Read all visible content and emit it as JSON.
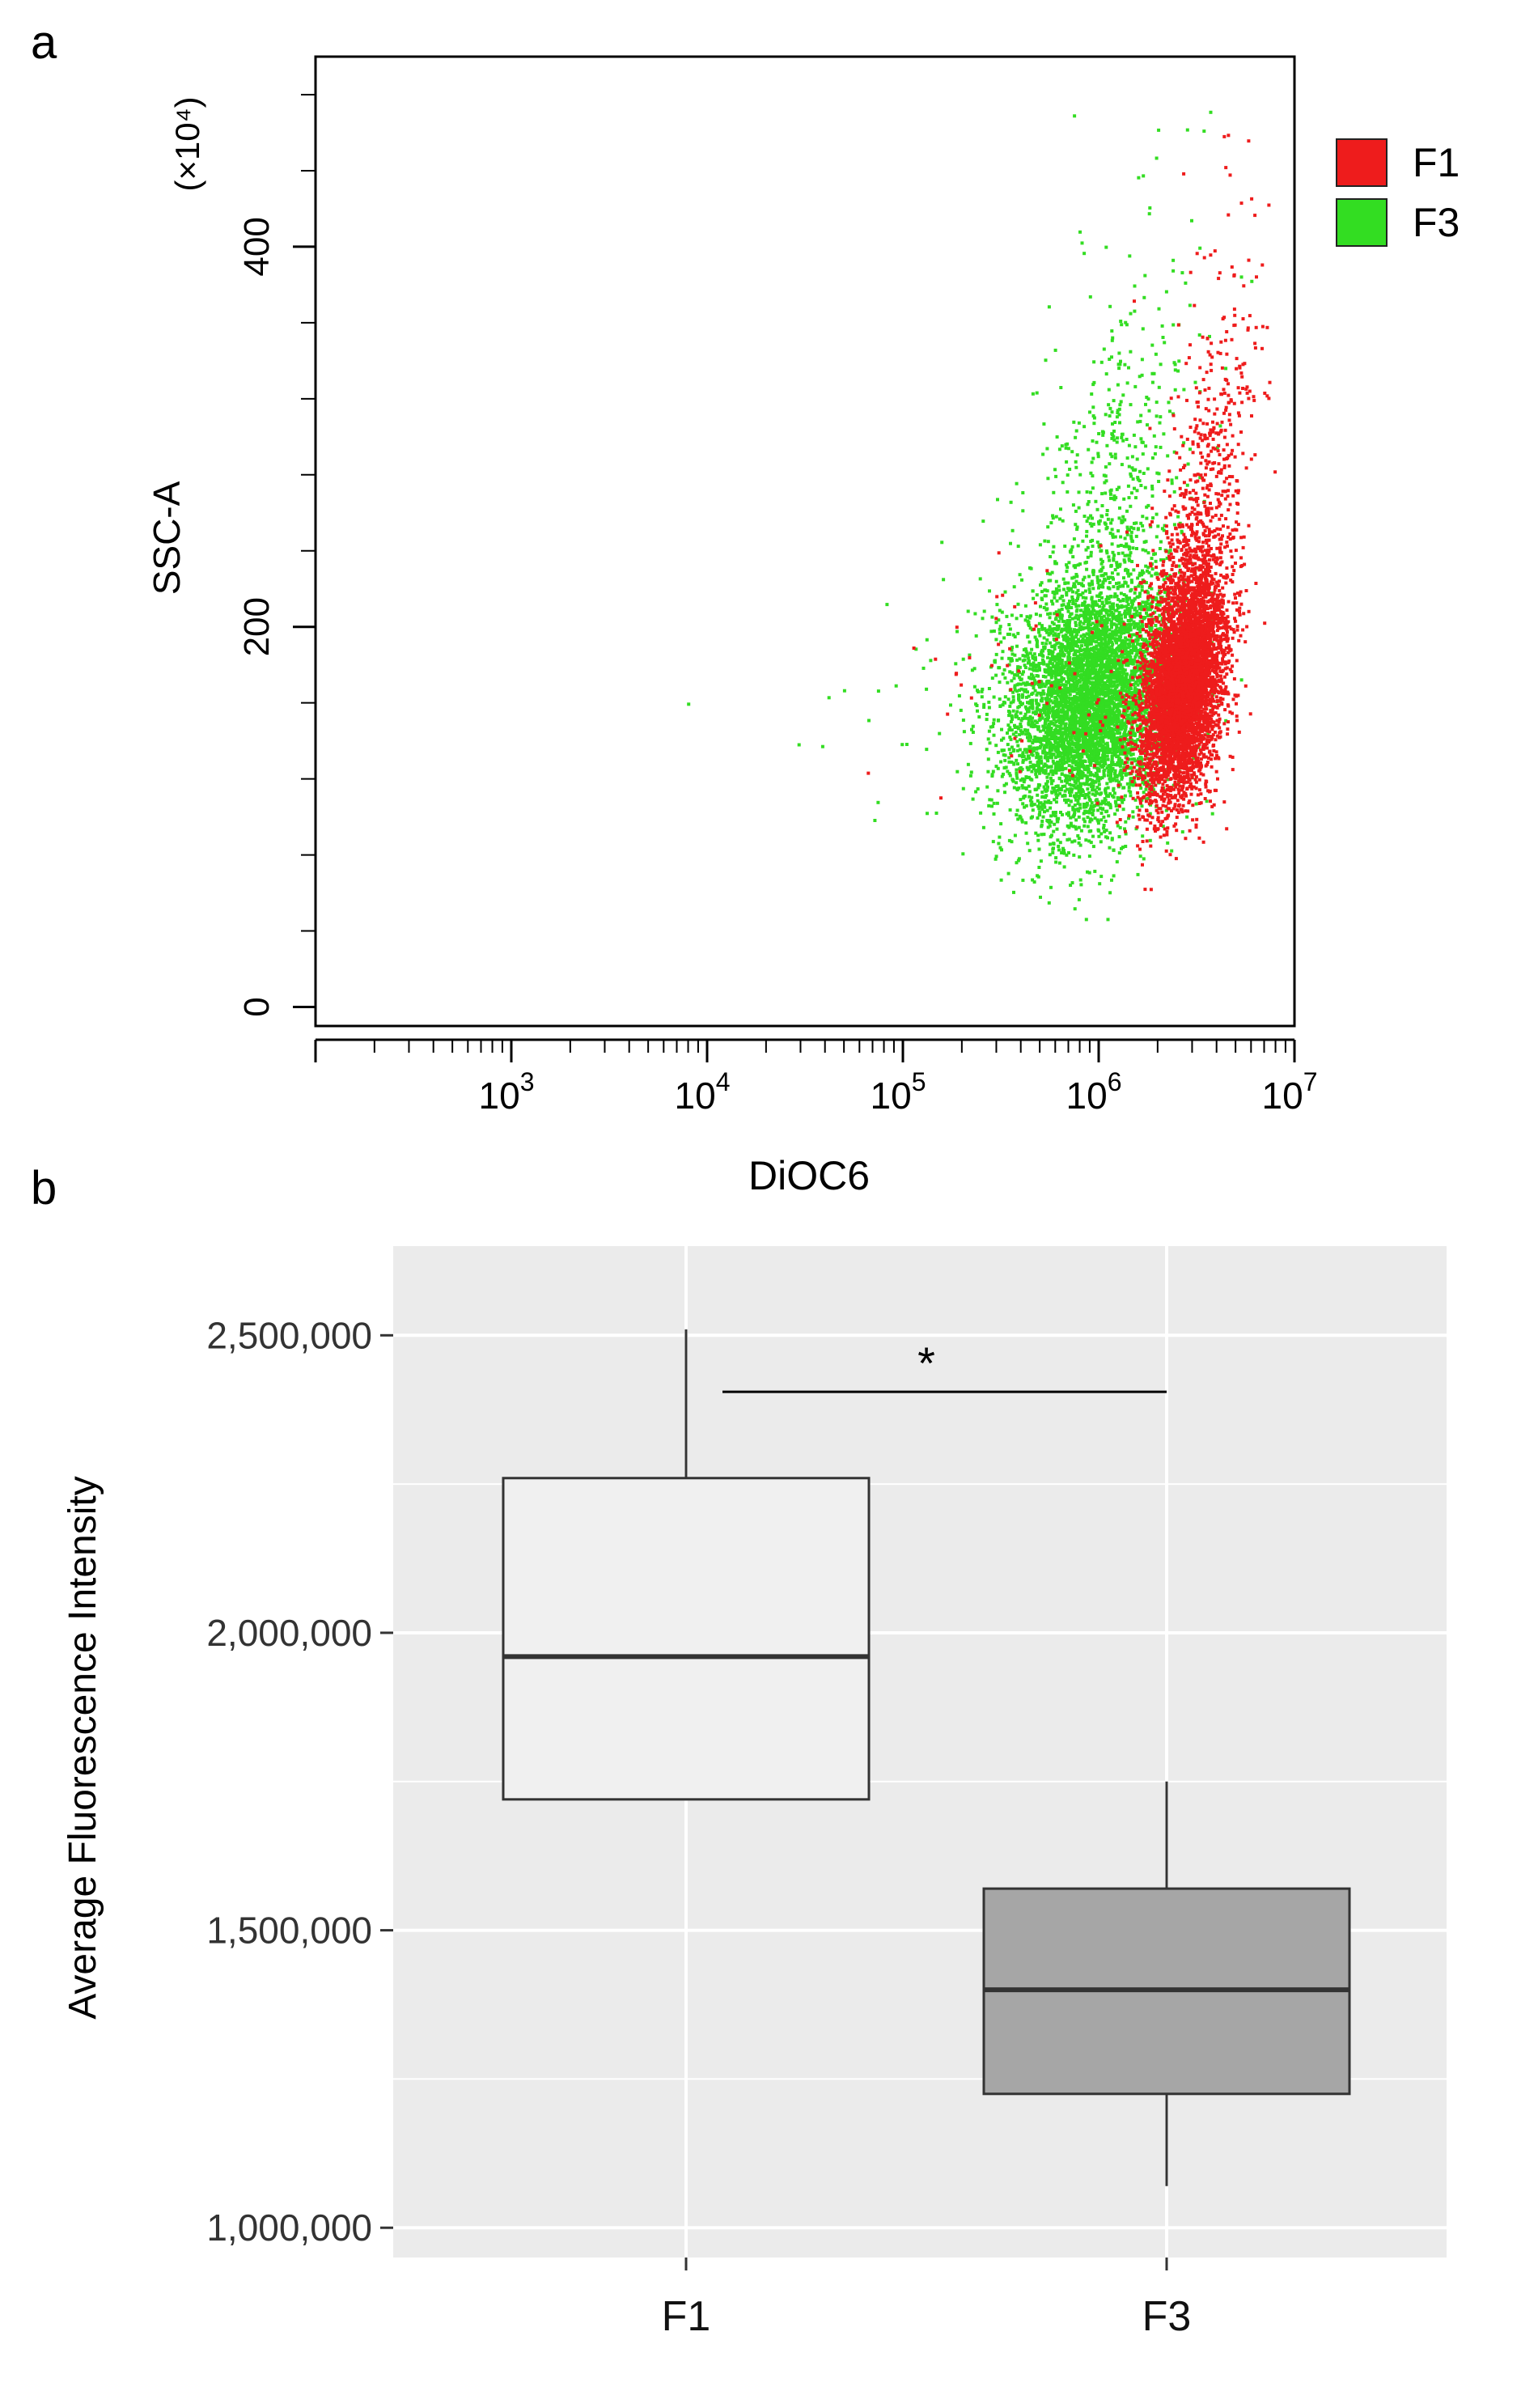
{
  "chart_data": [
    {
      "panel_label": "a",
      "type": "scatter",
      "title": "",
      "xlabel": "DiOC6",
      "ylabel": "SSC-A",
      "y_multiplier_label": "(×10⁴)",
      "x_scale": "log",
      "xlim": [
        100,
        10000000
      ],
      "ylim": [
        -10,
        500
      ],
      "x_tick_labels": [
        {
          "base": "10",
          "exp": "3",
          "value": 1000
        },
        {
          "base": "10",
          "exp": "4",
          "value": 10000
        },
        {
          "base": "10",
          "exp": "5",
          "value": 100000
        },
        {
          "base": "10",
          "exp": "6",
          "value": 1000000
        },
        {
          "base": "10",
          "exp": "7",
          "value": 10000000
        }
      ],
      "y_tick_labels": [
        {
          "label": "0",
          "value": 0
        },
        {
          "label": "200",
          "value": 200
        },
        {
          "label": "400",
          "value": 400
        }
      ],
      "legend": {
        "placement": "top-right",
        "entries": [
          {
            "name": "F1",
            "color": "#ee1c1c"
          },
          {
            "name": "F3",
            "color": "#33dd22"
          }
        ]
      },
      "series": [
        {
          "name": "F1",
          "color": "#ee1c1c",
          "x_log_center": 6.42,
          "x_log_spread": 0.1,
          "y_center": 170,
          "y_spread": 55,
          "n_points": 6000
        },
        {
          "name": "F3",
          "color": "#33dd22",
          "x_log_center": 5.95,
          "x_log_spread": 0.2,
          "y_center": 160,
          "y_spread": 60,
          "n_points": 6000
        }
      ],
      "grid": false
    },
    {
      "panel_label": "b",
      "type": "box",
      "title": "",
      "xlabel": "",
      "ylabel": "Average Fluorescence Intensity",
      "categories": [
        "F1",
        "F3"
      ],
      "ylim": [
        1000000,
        2600000
      ],
      "y_ticks": [
        {
          "label": "1,000,000",
          "value": 1000000
        },
        {
          "label": "1,500,000",
          "value": 1500000
        },
        {
          "label": "2,000,000",
          "value": 2000000
        },
        {
          "label": "2,500,000",
          "value": 2500000
        }
      ],
      "boxes": [
        {
          "name": "F1",
          "whisker_low": 1720000,
          "q1": 1720000,
          "median": 1960000,
          "q3": 2260000,
          "whisker_high": 2510000,
          "fill": "#f0f0f0"
        },
        {
          "name": "F3",
          "whisker_low": 1070000,
          "q1": 1225000,
          "median": 1400000,
          "q3": 1570000,
          "whisker_high": 1750000,
          "fill": "#a6a6a6"
        }
      ],
      "significance": {
        "label": "*",
        "from": "F1",
        "to": "F3",
        "y": 2405000
      },
      "grid": true,
      "panel_background": "#ebebeb"
    }
  ]
}
